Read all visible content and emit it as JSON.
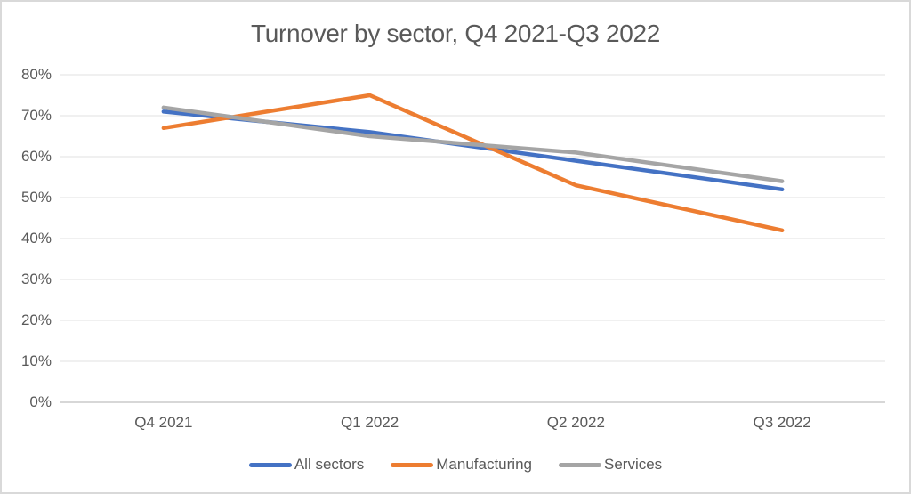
{
  "frame": {
    "background": "#ffffff",
    "border_color": "#d9d9d9"
  },
  "chart_data": {
    "type": "line",
    "title": "Turnover by sector, Q4 2021-Q3 2022",
    "categories": [
      "Q4 2021",
      "Q1 2022",
      "Q2 2022",
      "Q3 2022"
    ],
    "series": [
      {
        "name": "All sectors",
        "color": "#4472C4",
        "values": [
          71,
          66,
          59,
          52
        ]
      },
      {
        "name": "Manufacturing",
        "color": "#ED7D31",
        "values": [
          67,
          75,
          53,
          42
        ]
      },
      {
        "name": "Services",
        "color": "#A5A5A5",
        "values": [
          72,
          65,
          61,
          54
        ]
      }
    ],
    "y_axis": {
      "min": 0,
      "max": 80,
      "step": 10,
      "tick_labels": [
        "0%",
        "10%",
        "20%",
        "30%",
        "40%",
        "50%",
        "60%",
        "70%",
        "80%"
      ]
    },
    "xlabel": "",
    "ylabel": "",
    "grid": true,
    "legend_position": "bottom",
    "colors": {
      "gridline": "#e2e2e2",
      "axis_line": "#bfbfbf",
      "text": "#595959"
    }
  }
}
